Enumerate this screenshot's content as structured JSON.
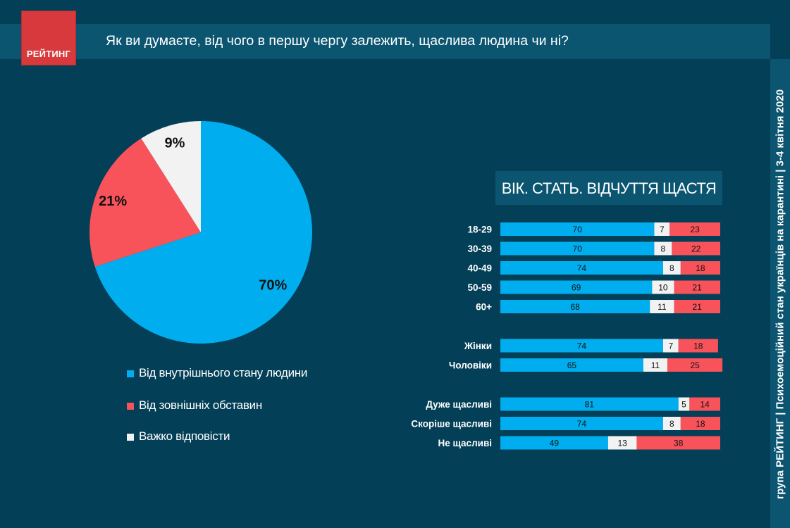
{
  "header": {
    "logo_text": "РЕЙТИНГ",
    "title": "Як ви думаєте, від чого в першу чергу залежить, щаслива людина чи ні?"
  },
  "side_caption": "група РЕЙТИНГ | Психоемоційний стан українців на карантині | 3-4 квітня 2020",
  "colors": {
    "background": "#033f57",
    "panel": "#0b5570",
    "internal": "#00aeef",
    "external": "#f8535b",
    "hard": "#f2f2f2",
    "logo": "#d8393c"
  },
  "chart_data": [
    {
      "type": "pie",
      "title": "",
      "slices": [
        {
          "name": "Від внутрішнього стану людини",
          "value": 70,
          "label": "70%",
          "color": "#00aeef"
        },
        {
          "name": "Від зовнішніх обставин",
          "value": 21,
          "label": "21%",
          "color": "#f8535b"
        },
        {
          "name": "Важко відповісти",
          "value": 9,
          "label": "9%",
          "color": "#f2f2f2"
        }
      ],
      "legend": [
        {
          "label": "Від внутрішнього стану людини",
          "color": "#00aeef"
        },
        {
          "label": "Від зовнішніх обставин",
          "color": "#f8535b"
        },
        {
          "label": "Важко відповісти",
          "color": "#f2f2f2"
        }
      ],
      "legend_position": "bottom"
    },
    {
      "type": "bar",
      "orientation": "horizontal",
      "stacked": true,
      "title": "ВІК. СТАТЬ. ВІДЧУТТЯ ЩАСТЯ",
      "groups": [
        {
          "categories": [
            "18-29",
            "30-39",
            "40-49",
            "50-59",
            "60+"
          ]
        },
        {
          "categories": [
            "Жінки",
            "Чоловіки"
          ]
        },
        {
          "categories": [
            "Дуже щасливі",
            "Скоріше щасливі",
            "Не щасливі"
          ]
        }
      ],
      "series": [
        {
          "name": "Від внутрішнього стану людини",
          "color": "#00aeef",
          "values": [
            70,
            70,
            74,
            69,
            68,
            74,
            65,
            81,
            74,
            49
          ]
        },
        {
          "name": "Важко відповісти",
          "color": "#f2f2f2",
          "values": [
            7,
            8,
            8,
            10,
            11,
            7,
            11,
            5,
            8,
            13
          ]
        },
        {
          "name": "Від зовнішніх обставин",
          "color": "#f8535b",
          "values": [
            23,
            22,
            18,
            21,
            21,
            18,
            25,
            14,
            18,
            38
          ]
        }
      ],
      "xlim": [
        0,
        100
      ]
    }
  ]
}
